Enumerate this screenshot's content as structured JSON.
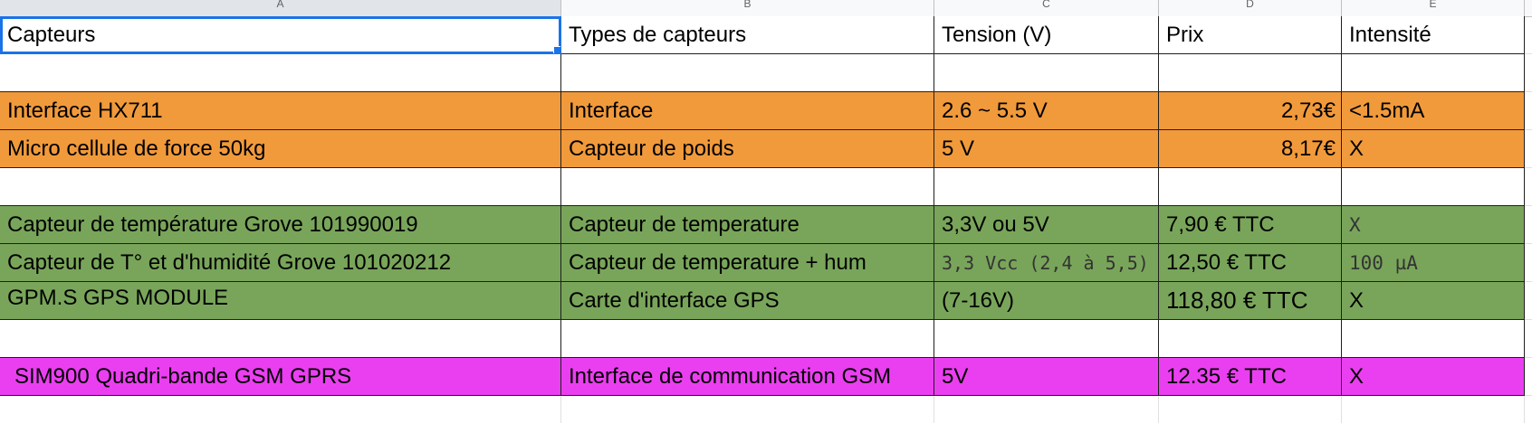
{
  "column_header_labels": [
    "A",
    "B",
    "C",
    "D",
    "E"
  ],
  "colors": {
    "orange": "#f19a3b",
    "green": "#79a55a",
    "magenta": "#ea3ff0",
    "white": "#ffffff",
    "selection": "#1a73e8"
  },
  "rows": [
    {
      "fill": "white",
      "cells": [
        "Capteurs",
        "Types de capteurs",
        "Tension (V)",
        "Prix",
        "Intensité"
      ]
    },
    {
      "fill": "white",
      "cells": [
        "",
        "",
        "",
        "",
        ""
      ]
    },
    {
      "fill": "orange",
      "cells": [
        "Interface HX711",
        "Interface",
        "2.6 ~ 5.5 V",
        "2,73€",
        "<1.5mA"
      ]
    },
    {
      "fill": "orange",
      "cells": [
        "Micro cellule de force 50kg",
        "Capteur de poids",
        "5 V",
        "8,17€",
        "X"
      ]
    },
    {
      "fill": "white",
      "cells": [
        "",
        "",
        "",
        "",
        ""
      ]
    },
    {
      "fill": "green",
      "cells": [
        "Capteur de température Grove 101990019",
        "Capteur de temperature",
        "3,3V ou 5V",
        "7,90 € TTC",
        "X"
      ]
    },
    {
      "fill": "green",
      "cells": [
        "Capteur de T° et d'humidité Grove 101020212",
        "Capteur de temperature + hum",
        "3,3 Vcc (2,4 à 5,5)",
        "12,50 € TTC",
        "100 µA"
      ]
    },
    {
      "fill": "green",
      "cells": [
        "GPM.S GPS MODULE",
        "Carte d'interface GPS",
        "(7-16V)",
        "118,80 € TTC",
        "X"
      ]
    },
    {
      "fill": "white",
      "cells": [
        "",
        "",
        "",
        "",
        ""
      ]
    },
    {
      "fill": "magenta",
      "cells": [
        "SIM900 Quadri-bande GSM GPRS",
        "Interface de communication GSM",
        "5V",
        "12.35 € TTC",
        "X"
      ]
    }
  ]
}
